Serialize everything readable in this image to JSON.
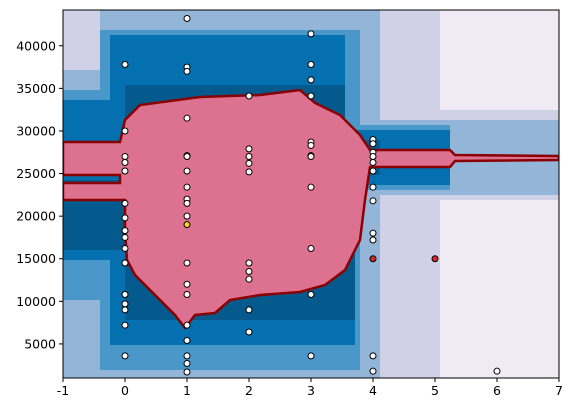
{
  "chart_data": {
    "type": "scatter",
    "xlim": [
      -1,
      7
    ],
    "xticks": [
      -1,
      0,
      1,
      2,
      3,
      4,
      5,
      6,
      7
    ],
    "ylim": [
      1000,
      44200
    ],
    "yticks": [
      5000,
      10000,
      15000,
      20000,
      25000,
      30000,
      35000,
      40000
    ],
    "series": [
      {
        "color": "#ffffff",
        "x": [
          0,
          0,
          0,
          0,
          0,
          0,
          0,
          0,
          0,
          0,
          0,
          0,
          0,
          0,
          0,
          0,
          1,
          1,
          1,
          1,
          1,
          1,
          1,
          1,
          1,
          1,
          1,
          1,
          1,
          1,
          1,
          1,
          1,
          1,
          1,
          2,
          2,
          2,
          2,
          2,
          2,
          2,
          2,
          2,
          2,
          3,
          3,
          3,
          3,
          3,
          3,
          3,
          3,
          3,
          3,
          3,
          3,
          4,
          4,
          4,
          4,
          4,
          4,
          4,
          4,
          4,
          4,
          4,
          4,
          6
        ],
        "y": [
          37800,
          30000,
          27000,
          26300,
          25300,
          21500,
          19800,
          18300,
          17500,
          16200,
          14500,
          10800,
          9700,
          9000,
          7200,
          3600,
          43200,
          37500,
          37000,
          31500,
          27100,
          27000,
          25300,
          23400,
          22000,
          21500,
          20000,
          14500,
          12000,
          10800,
          7200,
          5400,
          3600,
          2700,
          1700,
          34100,
          27900,
          27000,
          26200,
          25200,
          14500,
          13500,
          12600,
          9000,
          6400,
          41400,
          37800,
          36000,
          34100,
          28700,
          28300,
          27100,
          27000,
          23400,
          16200,
          10800,
          3600,
          29000,
          28500,
          27500,
          27000,
          26300,
          25300,
          23400,
          21800,
          18000,
          17200,
          3600,
          1800,
          1800
        ]
      },
      {
        "color": "#f5d327",
        "x": [
          1
        ],
        "y": [
          19000
        ]
      },
      {
        "color": "#d62728",
        "x": [
          4,
          5
        ],
        "y": [
          15000,
          15000
        ]
      }
    ]
  }
}
